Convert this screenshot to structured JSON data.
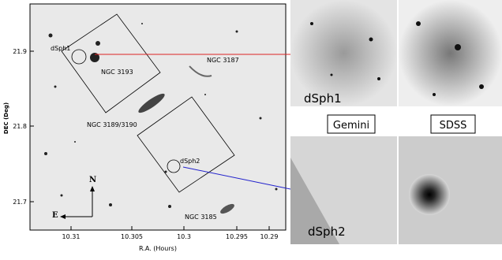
{
  "main_panel": {
    "x_axis_label": "R.A. (Hours)",
    "y_axis_label": "DEC (Deg)",
    "x_ticks": [
      10.31,
      10.305,
      10.3,
      10.295,
      10.29
    ],
    "y_ticks": [
      21.9,
      21.8,
      21.7
    ],
    "object_labels": [
      "dSph1",
      "NGC 3193",
      "NGC 3187",
      "NGC 3189/3190",
      "dSph2",
      "NGC 3185"
    ],
    "compass": [
      "N",
      "E"
    ]
  },
  "zoom_panels": {
    "top_label": "dSph1",
    "bottom_label": "dSph2",
    "columns": [
      "Gemini",
      "SDSS"
    ]
  }
}
